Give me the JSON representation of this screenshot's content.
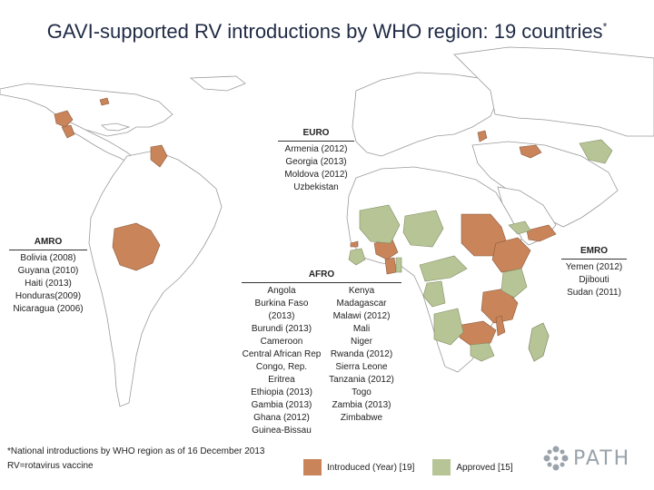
{
  "title": "GAVI-supported RV introductions by WHO region: 19 countries",
  "title_marker": "*",
  "colors": {
    "introduced": "#c9845a",
    "approved": "#b7c596",
    "land": "#ffffff",
    "border": "#9a9a9a"
  },
  "regions": {
    "euro": {
      "name": "EURO",
      "countries": [
        "Armenia (2012)",
        "Georgia (2013)",
        "Moldova (2012)",
        "Uzbekistan"
      ]
    },
    "amro": {
      "name": "AMRO",
      "countries": [
        "Bolivia (2008)",
        "Guyana (2010)",
        "Haiti (2013)",
        "Honduras(2009)",
        "Nicaragua (2006)"
      ]
    },
    "emro": {
      "name": "EMRO",
      "countries": [
        "Yemen (2012)",
        "Djibouti",
        "Sudan (2011)"
      ]
    },
    "afro": {
      "name": "AFRO",
      "col1": [
        "Angola",
        "Burkina Faso (2013)",
        "Burundi (2013)",
        "Cameroon",
        "Central African Rep",
        "Congo, Rep.",
        "Eritrea",
        "Ethiopia (2013)",
        "Gambia (2013)",
        "Ghana (2012)",
        "Guinea-Bissau"
      ],
      "col2": [
        "Kenya",
        "Madagascar",
        "Malawi  (2012)",
        "Mali",
        "Niger",
        "Rwanda (2012)",
        "Sierra Leone",
        "Tanzania (2012)",
        "Togo",
        "Zambia (2013)",
        "Zimbabwe"
      ]
    }
  },
  "footnote": {
    "line1": "*National introductions by WHO region as of 16 December  2013",
    "line2": "RV=rotavirus vaccine"
  },
  "legend": {
    "introduced_label": "Introduced (Year) [19]",
    "approved_label": "Approved [15]"
  },
  "logo": {
    "text": "PATH"
  }
}
